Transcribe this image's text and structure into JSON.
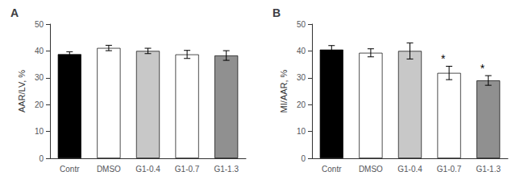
{
  "chart_data": [
    {
      "type": "bar",
      "title": "A",
      "categories": [
        "Contr",
        "DMSO",
        "G1-0.4",
        "G1-0.7",
        "G1-1.3"
      ],
      "values": [
        38.8,
        41.1,
        40.0,
        38.7,
        38.3
      ],
      "errors": [
        0.9,
        1.0,
        1.0,
        1.5,
        1.8
      ],
      "ylabel": "AAR/LV, %",
      "ylim": [
        0,
        50
      ],
      "yticks": [
        0,
        10,
        20,
        30,
        40,
        50
      ],
      "colors": [
        "#000000",
        "#ffffff",
        "#c8c8c8",
        "#ffffff",
        "#909090"
      ],
      "grid": false
    },
    {
      "type": "bar",
      "title": "B",
      "categories": [
        "Contr",
        "DMSO",
        "G1-0.4",
        "G1-0.7",
        "G1-1.3"
      ],
      "values": [
        40.5,
        39.3,
        40.0,
        31.8,
        29.0
      ],
      "errors": [
        1.5,
        1.5,
        3.0,
        2.5,
        1.8
      ],
      "ylabel": "MI/AAR, %",
      "ylim": [
        0,
        50
      ],
      "yticks": [
        0,
        10,
        20,
        30,
        40,
        50
      ],
      "colors": [
        "#000000",
        "#ffffff",
        "#c8c8c8",
        "#ffffff",
        "#909090"
      ],
      "annotations": [
        {
          "category": "G1-0.7",
          "text": "*"
        },
        {
          "category": "G1-1.3",
          "text": "*"
        }
      ],
      "grid": false
    }
  ]
}
